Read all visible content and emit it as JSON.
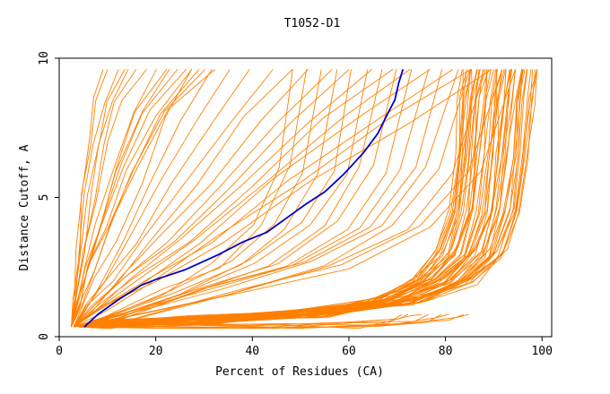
{
  "chart_data": {
    "type": "line",
    "title": "T1052-D1",
    "xlabel": "Percent of Residues (CA)",
    "ylabel": "Distance Cutoff, A",
    "xlim": [
      0,
      102
    ],
    "ylim": [
      0,
      10
    ],
    "x_ticks": [
      "0",
      "20",
      "40",
      "60",
      "80",
      "100"
    ],
    "y_ticks": [
      "0",
      "5",
      "10"
    ],
    "grid": false,
    "colors": {
      "background_series": "#ff8000",
      "highlight": "#0000cc",
      "axis": "#000000"
    },
    "highlight_series": {
      "x": [
        5.2,
        8,
        12,
        17,
        20,
        26,
        33,
        38,
        43,
        47,
        51,
        55,
        59,
        63,
        66,
        68,
        69.5,
        70.3,
        71.2
      ],
      "y": [
        0.35,
        0.8,
        1.3,
        1.85,
        2.05,
        2.4,
        2.95,
        3.4,
        3.75,
        4.25,
        4.75,
        5.2,
        5.85,
        6.6,
        7.3,
        8.0,
        8.5,
        9.1,
        9.6
      ]
    },
    "series_groups": [
      {
        "name": "",
        "count": 7,
        "x": [
          2.5,
          3,
          4,
          5,
          6.5,
          8,
          10.5
        ],
        "y": [
          0.35,
          1.2,
          3,
          5,
          7,
          8.5,
          9.6
        ],
        "x_stretch": [
          0.8,
          1.9
        ]
      },
      {
        "name": "",
        "count": 9,
        "x": [
          2.5,
          4,
          6,
          9,
          13,
          18,
          25
        ],
        "y": [
          0.35,
          1.2,
          2.5,
          4,
          6,
          8,
          9.6
        ],
        "x_stretch": [
          0.8,
          1.3
        ]
      },
      {
        "name": "",
        "count": 16,
        "x": [
          3,
          8,
          16,
          28,
          42,
          58,
          72
        ],
        "y": [
          0.35,
          1,
          2,
          3.5,
          5.5,
          7.8,
          9.6
        ],
        "x_stretch": [
          0.35,
          1.25
        ]
      },
      {
        "name": "",
        "count": 16,
        "x": [
          3,
          15,
          35,
          55,
          70,
          80,
          86
        ],
        "y": [
          0.35,
          0.8,
          1.6,
          2.6,
          4,
          6,
          9.6
        ],
        "x_stretch": [
          0.55,
          1.1
        ]
      },
      {
        "name": "",
        "count": 8,
        "x": [
          4,
          20,
          45,
          65,
          75,
          78
        ],
        "y": [
          0.35,
          0.35,
          0.35,
          0.4,
          0.6,
          0.8
        ],
        "x_stretch": [
          0.9,
          1.1
        ]
      },
      {
        "name": "",
        "count": 50,
        "x": [
          4,
          10,
          30,
          55,
          72,
          82,
          88,
          91,
          92.5,
          93.5,
          94.5
        ],
        "y": [
          0.35,
          0.45,
          0.6,
          0.85,
          1.3,
          2,
          3,
          4.5,
          6.5,
          8.5,
          9.6
        ],
        "x_stretch": [
          0.88,
          1.055
        ]
      }
    ]
  }
}
